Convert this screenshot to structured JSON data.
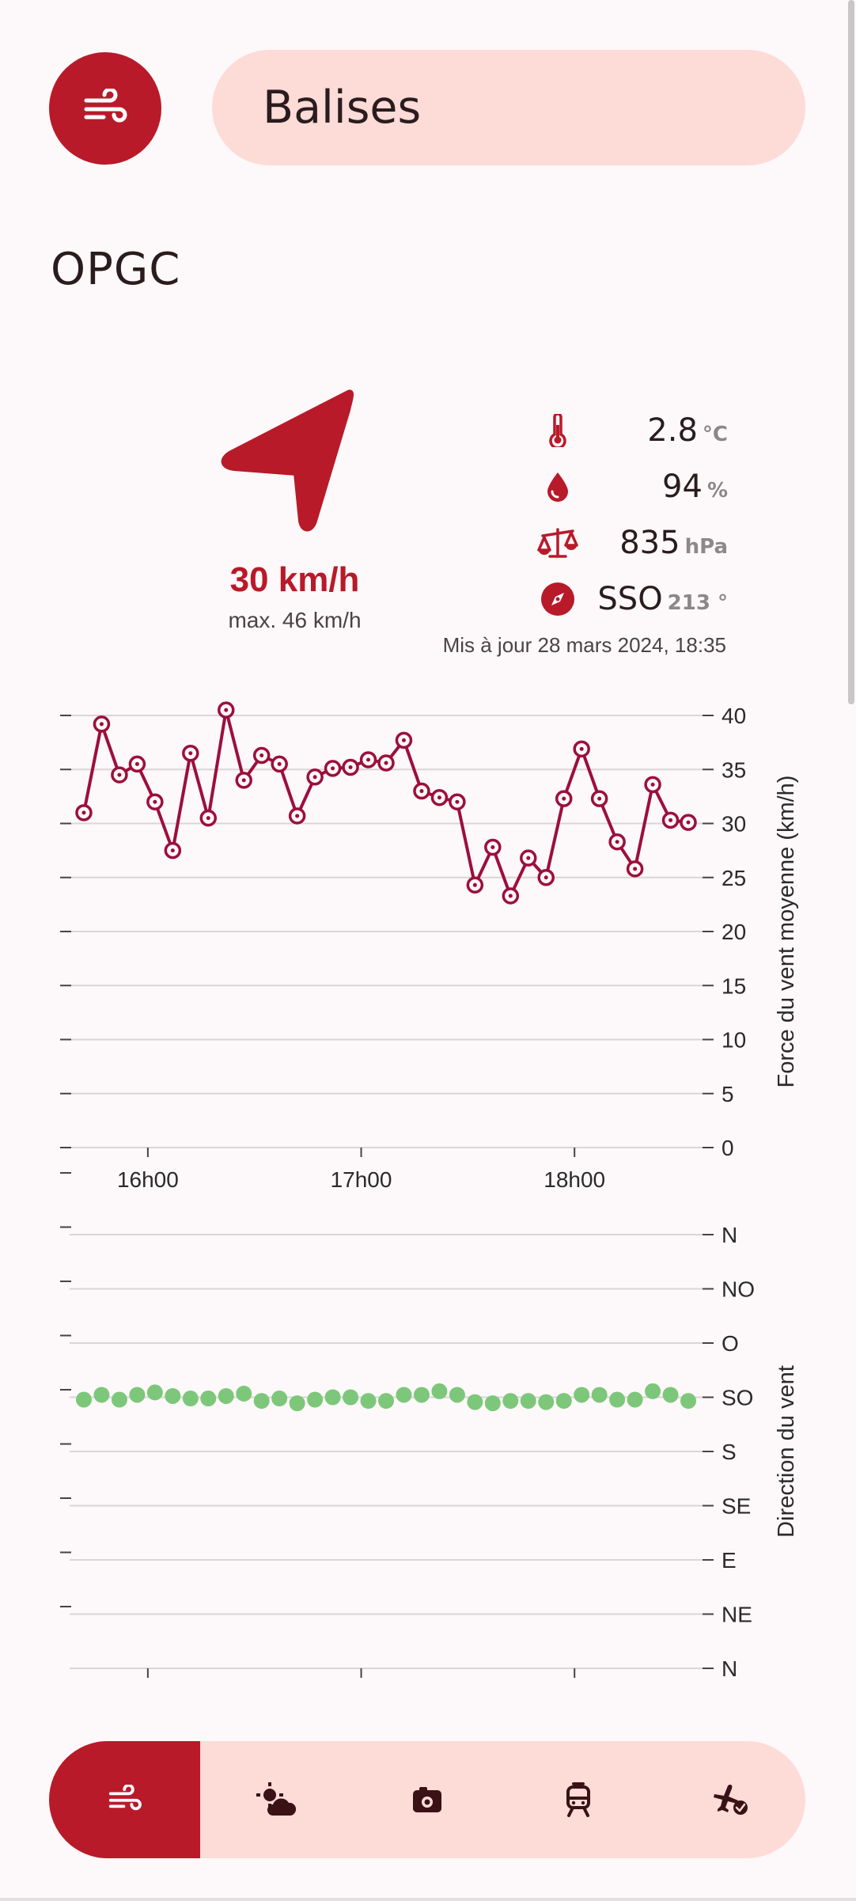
{
  "header": {
    "title": "Balises",
    "app_icon": "wind-icon"
  },
  "station": {
    "name": "OPGC"
  },
  "current": {
    "wind_speed": "30 km/h",
    "wind_max": "max. 46 km/h",
    "wind_direction_deg": 213,
    "stats": [
      {
        "icon": "thermometer-icon",
        "value": "2.8",
        "unit": "°C"
      },
      {
        "icon": "water-drop-icon",
        "value": "94",
        "unit": "%"
      },
      {
        "icon": "scale-icon",
        "value": "835",
        "unit": "hPa"
      },
      {
        "icon": "compass-icon",
        "value": "SSO",
        "unit": "213 °"
      }
    ],
    "updated": "Mis à jour 28 mars 2024, 18:35"
  },
  "colors": {
    "accent": "#b81a2a",
    "accent_light": "#fddbd7",
    "speed_series": "#9c0f3d",
    "direction_series": "#7dc77b"
  },
  "chart_data": [
    {
      "type": "line",
      "ylabel": "Force du vent moyenne (km/h)",
      "xticks": [
        "16h00",
        "17h00",
        "18h00"
      ],
      "x_tick_minutes": [
        960,
        1020,
        1080
      ],
      "ylim": [
        0,
        40
      ],
      "yticks": [
        0,
        5,
        10,
        15,
        20,
        25,
        30,
        35,
        40
      ],
      "grid": true,
      "series": [
        {
          "x_minutes": [
            942,
            947,
            952,
            957,
            962,
            967,
            972,
            977,
            982,
            987,
            992,
            997,
            1002,
            1007,
            1012,
            1017,
            1022,
            1027,
            1032,
            1037,
            1042,
            1047,
            1052,
            1057,
            1062,
            1067,
            1072,
            1077,
            1082,
            1087,
            1092,
            1097,
            1102,
            1107,
            1112
          ],
          "values": [
            31,
            39.2,
            34.5,
            35.5,
            32,
            27.5,
            36.5,
            30.5,
            40.5,
            34,
            36.3,
            35.5,
            30.7,
            34.3,
            35.1,
            35.2,
            35.9,
            35.6,
            37.7,
            33,
            32.4,
            32,
            24.3,
            27.8,
            23.3,
            26.8,
            25,
            32.3,
            36.9,
            32.3,
            28.3,
            25.8,
            33.6,
            30.3,
            30.1
          ]
        }
      ]
    },
    {
      "type": "scatter",
      "ylabel": "Direction du vent",
      "xticks": [
        "16h00",
        "17h00",
        "18h00"
      ],
      "x_tick_minutes": [
        960,
        1020,
        1080
      ],
      "y_categories": [
        "N",
        "NE",
        "E",
        "SE",
        "S",
        "SO",
        "O",
        "NO",
        "N"
      ],
      "ylim": [
        0,
        360
      ],
      "grid": true,
      "series": [
        {
          "x_minutes": [
            942,
            947,
            952,
            957,
            962,
            967,
            972,
            977,
            982,
            987,
            992,
            997,
            1002,
            1007,
            1012,
            1017,
            1022,
            1027,
            1032,
            1037,
            1042,
            1047,
            1052,
            1057,
            1062,
            1067,
            1072,
            1077,
            1082,
            1087,
            1092,
            1097,
            1102,
            1107,
            1112
          ],
          "values": [
            223,
            227,
            223,
            227,
            229,
            226,
            224,
            224,
            226,
            228,
            222,
            224,
            220,
            223,
            225,
            225,
            222,
            222,
            227,
            227,
            230,
            227,
            221,
            220,
            222,
            222,
            221,
            222,
            227,
            227,
            223,
            223,
            230,
            227,
            222
          ]
        }
      ]
    }
  ],
  "bottom_nav": [
    {
      "icon": "wind-icon",
      "active": true
    },
    {
      "icon": "weather-sun-cloud-icon",
      "active": false
    },
    {
      "icon": "webcam-icon",
      "active": false
    },
    {
      "icon": "train-icon",
      "active": false
    },
    {
      "icon": "airplane-check-icon",
      "active": false
    }
  ]
}
